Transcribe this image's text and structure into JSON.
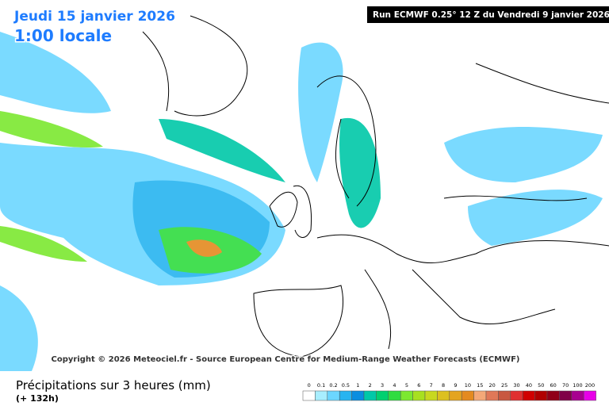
{
  "header": {
    "date": "Jeudi 15 janvier 2026",
    "time": "1:00 locale",
    "run": "Run ECMWF 0.25° 12 Z du Vendredi 9 janvier 2026"
  },
  "copyright": "Copyright © 2026 Meteociel.fr - Source European Centre for Medium-Range Weather Forecasts (ECMWF)",
  "footer": {
    "title": "Précipitations sur 3 heures (mm)",
    "lead": "(+ 132h)"
  },
  "legend": {
    "items": [
      {
        "label": "0",
        "color": "#ffffff"
      },
      {
        "label": "0.1",
        "color": "#a8eeff"
      },
      {
        "label": "0.2",
        "color": "#6cd6ff"
      },
      {
        "label": "0.5",
        "color": "#28b4f0"
      },
      {
        "label": "1",
        "color": "#0a8ee0"
      },
      {
        "label": "2",
        "color": "#00c8a8"
      },
      {
        "label": "3",
        "color": "#00d070"
      },
      {
        "label": "4",
        "color": "#30dc40"
      },
      {
        "label": "5",
        "color": "#7ce830"
      },
      {
        "label": "6",
        "color": "#a8e020"
      },
      {
        "label": "7",
        "color": "#c8d820"
      },
      {
        "label": "8",
        "color": "#dcc020"
      },
      {
        "label": "9",
        "color": "#e4a420"
      },
      {
        "label": "10",
        "color": "#e48a20"
      },
      {
        "label": "15",
        "color": "#f4a878"
      },
      {
        "label": "20",
        "color": "#e07858"
      },
      {
        "label": "25",
        "color": "#c85840"
      },
      {
        "label": "30",
        "color": "#e03030"
      },
      {
        "label": "40",
        "color": "#d00000"
      },
      {
        "label": "50",
        "color": "#b00000"
      },
      {
        "label": "60",
        "color": "#900018"
      },
      {
        "label": "70",
        "color": "#800048"
      },
      {
        "label": "100",
        "color": "#a80090"
      },
      {
        "label": "200",
        "color": "#e800e8"
      }
    ]
  }
}
